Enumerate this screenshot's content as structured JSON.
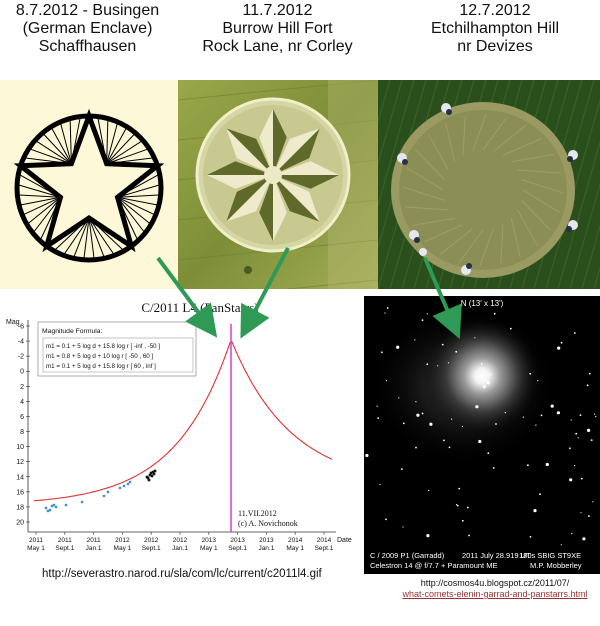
{
  "captions": [
    {
      "lines": [
        "8.7.2012 - Busingen",
        "(German Enclave)",
        "Schaffhausen"
      ]
    },
    {
      "lines": [
        "11.7.2012",
        "Burrow Hill Fort",
        "Rock Lane, nr Corley"
      ]
    },
    {
      "lines": [
        "12.7.2012",
        "Etchilhampton Hill",
        "nr Devizes"
      ]
    }
  ],
  "chart": {
    "title": "C/2011 L4 (PanStarrs)",
    "ylabel": "Mag",
    "xlabel": "Date",
    "formula_title": "Magnitude Formula:",
    "formula_lines": [
      "m1 = 0.1 + 5 log d + 15.8 log r   [ -inf ,  -50 ]",
      "m1 = 0.8 + 5 log d +  10   log r   [ -50 ,   60 ]",
      "m1 = 0.1 + 5 log d + 15.8 log r   [  60 ,  inf ]"
    ],
    "y_ticks": [
      "-6",
      "-4",
      "-2",
      "0",
      "2",
      "4",
      "6",
      "8",
      "10",
      "12",
      "14",
      "16",
      "18",
      "20"
    ],
    "x_year_labels": [
      "2011",
      "2011",
      "2011",
      "2012",
      "2012",
      "2012",
      "2013",
      "2013",
      "2013",
      "2014",
      "2014"
    ],
    "x_month_labels": [
      "May 1",
      "Sept.1",
      "Jan.1",
      "May 1",
      "Sept.1",
      "Jan.1",
      "May 1",
      "Sept.1",
      "Jan.1",
      "May 1",
      "Sept.1"
    ],
    "annotation_date": "11.VII.2012",
    "annotation_author": "(c) A. Novichonok",
    "colors": {
      "curve": "#e03030",
      "marker": "#d030d0",
      "obs_blue": "#3a8fd0",
      "obs_dark": "#111111"
    }
  },
  "comet_image": {
    "title": "N (13' x 13')",
    "left_line1": "C / 2009 P1 (Garradd)",
    "left_line2": "Celestron 14 @ f/7.7 + Paramount ME",
    "mid_line1": "2011 July 28.919 UT",
    "right_line1": "180s    SBIG ST9XE",
    "right_line2": "M.P. Mobberley"
  },
  "urls": {
    "chart_source": "http://severastro.narod.ru/sla/com/lc/current/c2011l4.gif",
    "comet_source_line1": "http://cosmos4u.blogspot.cz/2011/07/",
    "comet_source_line2": "what-comets-elenin-garrad-and-panstarrs.html"
  },
  "arrow_color": "#2e9a55"
}
